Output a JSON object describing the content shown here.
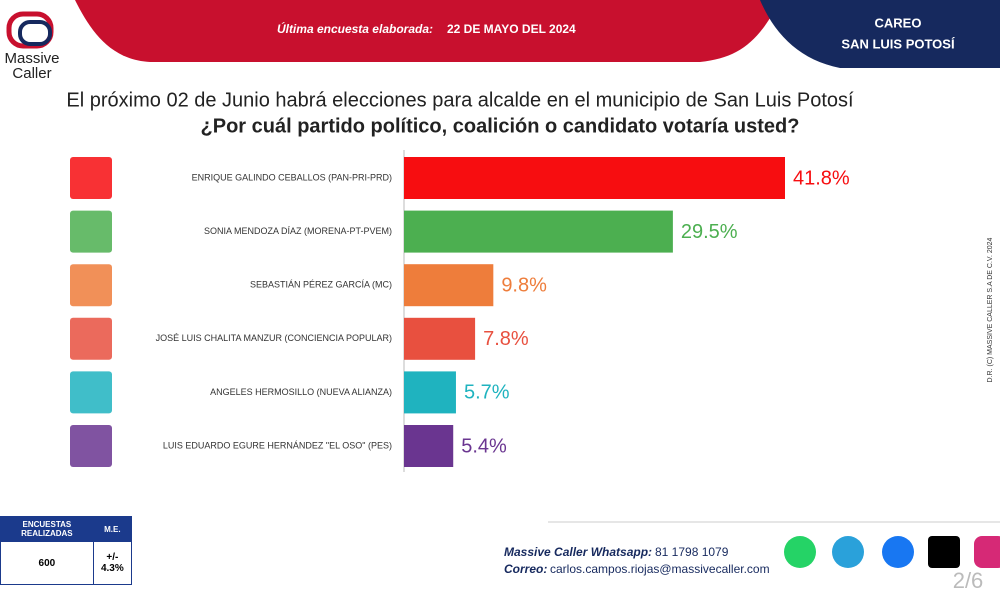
{
  "logo": [
    "Massive",
    "Caller"
  ],
  "header": {
    "label": "Última encuesta elaborada:",
    "date": "22 DE MAYO DEL 2024",
    "region_title": "CAREO",
    "region": "SAN LUIS POTOSÍ"
  },
  "chart_data": {
    "type": "bar",
    "orientation": "horizontal",
    "title": "El próximo 02 de Junio habrá elecciones para alcalde en el municipio de San Luis Potosí",
    "subtitle": "¿Por cuál partido político, coalición o candidato votaría usted?",
    "categories": [
      "ENRIQUE GALINDO CEBALLOS (PAN-PRI-PRD)",
      "SONIA MENDOZA DÍAZ (MORENA-PT-PVEM)",
      "SEBASTIÁN PÉREZ GARCÍA (MC)",
      "JOSÉ LUIS CHALITA MANZUR (CONCIENCIA POPULAR)",
      "ANGELES HERMOSILLO (NUEVA ALIANZA)",
      "LUIS EDUARDO EGURE HERNÁNDEZ \"EL OSO\" (PES)"
    ],
    "values": [
      41.8,
      29.5,
      9.8,
      7.8,
      5.7,
      5.4
    ],
    "value_labels": [
      "41.8%",
      "29.5%",
      "9.8%",
      "7.8%",
      "5.7%",
      "5.4%"
    ],
    "colors": [
      "#f70d10",
      "#4caf50",
      "#ee7d3b",
      "#e8503f",
      "#1fb3bf",
      "#6a3590"
    ]
  },
  "survey_table": {
    "headers": [
      "ENCUESTAS REALIZADAS",
      "M.E."
    ],
    "row": [
      "600",
      "+/- 4.3%"
    ]
  },
  "contact": {
    "whatsapp_label": "Massive Caller Whatsapp:",
    "whatsapp": "81 1798 1079",
    "email_label": "Correo:",
    "email": "carlos.campos.riojas@massivecaller.com"
  },
  "page": "2/6",
  "copyright": "D.R. (C) MASSIVE CALLER S.A DE C.V. 2024"
}
